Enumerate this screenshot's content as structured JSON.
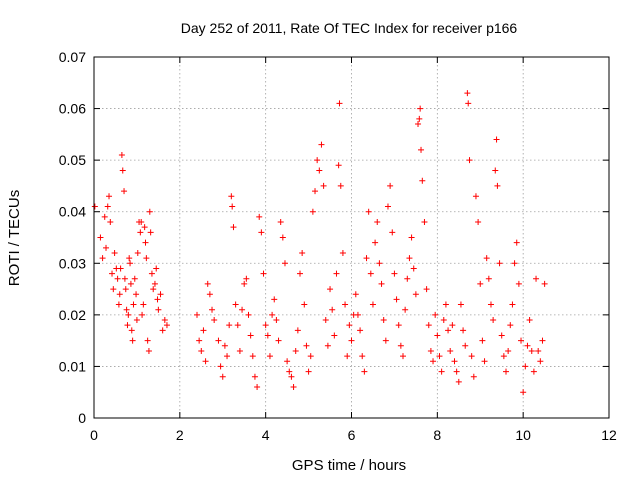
{
  "chart_data": {
    "type": "scatter",
    "title": "Day 252 of 2011, Rate Of TEC Index for receiver p166",
    "xlabel": "GPS time / hours",
    "ylabel": "ROTI / TECUs",
    "xlim": [
      0,
      12
    ],
    "ylim": [
      0,
      0.07
    ],
    "xticks": [
      0,
      2,
      4,
      6,
      8,
      10,
      12
    ],
    "xtick_labels": [
      "0",
      "2",
      "4",
      "6",
      "8",
      "10",
      "12"
    ],
    "yticks": [
      0,
      0.01,
      0.02,
      0.03,
      0.04,
      0.05,
      0.06,
      0.07
    ],
    "ytick_labels": [
      "0",
      "0.01",
      "0.02",
      "0.03",
      "0.04",
      "0.05",
      "0.06",
      "0.07"
    ],
    "grid": true,
    "marker": "+",
    "color": "#ff0000",
    "series": [
      {
        "name": "ROTI",
        "points": [
          [
            0.02,
            0.041
          ],
          [
            0.15,
            0.035
          ],
          [
            0.2,
            0.031
          ],
          [
            0.25,
            0.039
          ],
          [
            0.28,
            0.033
          ],
          [
            0.32,
            0.041
          ],
          [
            0.35,
            0.043
          ],
          [
            0.38,
            0.038
          ],
          [
            0.42,
            0.028
          ],
          [
            0.45,
            0.025
          ],
          [
            0.48,
            0.032
          ],
          [
            0.52,
            0.029
          ],
          [
            0.55,
            0.027
          ],
          [
            0.58,
            0.022
          ],
          [
            0.6,
            0.024
          ],
          [
            0.62,
            0.029
          ],
          [
            0.65,
            0.051
          ],
          [
            0.67,
            0.048
          ],
          [
            0.7,
            0.044
          ],
          [
            0.72,
            0.027
          ],
          [
            0.74,
            0.025
          ],
          [
            0.76,
            0.021
          ],
          [
            0.78,
            0.018
          ],
          [
            0.8,
            0.02
          ],
          [
            0.82,
            0.031
          ],
          [
            0.84,
            0.03
          ],
          [
            0.86,
            0.026
          ],
          [
            0.88,
            0.017
          ],
          [
            0.9,
            0.015
          ],
          [
            0.92,
            0.022
          ],
          [
            0.95,
            0.027
          ],
          [
            0.98,
            0.024
          ],
          [
            1.0,
            0.019
          ],
          [
            1.02,
            0.032
          ],
          [
            1.05,
            0.038
          ],
          [
            1.08,
            0.036
          ],
          [
            1.1,
            0.038
          ],
          [
            1.12,
            0.02
          ],
          [
            1.15,
            0.022
          ],
          [
            1.18,
            0.037
          ],
          [
            1.2,
            0.034
          ],
          [
            1.22,
            0.031
          ],
          [
            1.25,
            0.015
          ],
          [
            1.28,
            0.013
          ],
          [
            1.3,
            0.04
          ],
          [
            1.32,
            0.036
          ],
          [
            1.35,
            0.028
          ],
          [
            1.38,
            0.025
          ],
          [
            1.42,
            0.026
          ],
          [
            1.45,
            0.029
          ],
          [
            1.48,
            0.023
          ],
          [
            1.5,
            0.021
          ],
          [
            1.55,
            0.024
          ],
          [
            1.6,
            0.017
          ],
          [
            1.65,
            0.019
          ],
          [
            1.7,
            0.018
          ],
          [
            2.4,
            0.02
          ],
          [
            2.45,
            0.015
          ],
          [
            2.5,
            0.013
          ],
          [
            2.55,
            0.017
          ],
          [
            2.6,
            0.011
          ],
          [
            2.65,
            0.026
          ],
          [
            2.7,
            0.024
          ],
          [
            2.75,
            0.021
          ],
          [
            2.8,
            0.019
          ],
          [
            2.9,
            0.015
          ],
          [
            2.95,
            0.01
          ],
          [
            3.0,
            0.008
          ],
          [
            3.05,
            0.014
          ],
          [
            3.1,
            0.012
          ],
          [
            3.15,
            0.018
          ],
          [
            3.2,
            0.043
          ],
          [
            3.22,
            0.041
          ],
          [
            3.25,
            0.037
          ],
          [
            3.3,
            0.022
          ],
          [
            3.35,
            0.018
          ],
          [
            3.4,
            0.013
          ],
          [
            3.45,
            0.021
          ],
          [
            3.5,
            0.026
          ],
          [
            3.55,
            0.027
          ],
          [
            3.6,
            0.02
          ],
          [
            3.65,
            0.016
          ],
          [
            3.7,
            0.012
          ],
          [
            3.75,
            0.008
          ],
          [
            3.8,
            0.006
          ],
          [
            3.85,
            0.039
          ],
          [
            3.9,
            0.036
          ],
          [
            3.95,
            0.028
          ],
          [
            4.0,
            0.018
          ],
          [
            4.05,
            0.016
          ],
          [
            4.1,
            0.012
          ],
          [
            4.15,
            0.02
          ],
          [
            4.2,
            0.023
          ],
          [
            4.25,
            0.019
          ],
          [
            4.3,
            0.015
          ],
          [
            4.35,
            0.038
          ],
          [
            4.4,
            0.035
          ],
          [
            4.45,
            0.03
          ],
          [
            4.5,
            0.011
          ],
          [
            4.55,
            0.009
          ],
          [
            4.6,
            0.008
          ],
          [
            4.65,
            0.006
          ],
          [
            4.7,
            0.013
          ],
          [
            4.75,
            0.017
          ],
          [
            4.8,
            0.028
          ],
          [
            4.85,
            0.032
          ],
          [
            4.9,
            0.022
          ],
          [
            4.95,
            0.014
          ],
          [
            5.0,
            0.009
          ],
          [
            5.05,
            0.012
          ],
          [
            5.1,
            0.04
          ],
          [
            5.15,
            0.044
          ],
          [
            5.2,
            0.05
          ],
          [
            5.25,
            0.048
          ],
          [
            5.3,
            0.053
          ],
          [
            5.35,
            0.045
          ],
          [
            5.4,
            0.019
          ],
          [
            5.45,
            0.014
          ],
          [
            5.5,
            0.025
          ],
          [
            5.55,
            0.021
          ],
          [
            5.6,
            0.016
          ],
          [
            5.65,
            0.028
          ],
          [
            5.7,
            0.049
          ],
          [
            5.72,
            0.061
          ],
          [
            5.75,
            0.045
          ],
          [
            5.8,
            0.032
          ],
          [
            5.85,
            0.022
          ],
          [
            5.9,
            0.012
          ],
          [
            5.95,
            0.018
          ],
          [
            6.0,
            0.015
          ],
          [
            6.05,
            0.02
          ],
          [
            6.1,
            0.024
          ],
          [
            6.15,
            0.02
          ],
          [
            6.2,
            0.017
          ],
          [
            6.25,
            0.012
          ],
          [
            6.3,
            0.009
          ],
          [
            6.35,
            0.031
          ],
          [
            6.4,
            0.04
          ],
          [
            6.45,
            0.028
          ],
          [
            6.5,
            0.022
          ],
          [
            6.55,
            0.034
          ],
          [
            6.6,
            0.038
          ],
          [
            6.65,
            0.03
          ],
          [
            6.7,
            0.026
          ],
          [
            6.75,
            0.019
          ],
          [
            6.8,
            0.015
          ],
          [
            6.85,
            0.041
          ],
          [
            6.9,
            0.045
          ],
          [
            6.95,
            0.036
          ],
          [
            7.0,
            0.028
          ],
          [
            7.05,
            0.023
          ],
          [
            7.1,
            0.018
          ],
          [
            7.15,
            0.014
          ],
          [
            7.2,
            0.012
          ],
          [
            7.25,
            0.021
          ],
          [
            7.3,
            0.027
          ],
          [
            7.35,
            0.031
          ],
          [
            7.4,
            0.035
          ],
          [
            7.45,
            0.029
          ],
          [
            7.5,
            0.024
          ],
          [
            7.55,
            0.057
          ],
          [
            7.58,
            0.058
          ],
          [
            7.6,
            0.06
          ],
          [
            7.62,
            0.052
          ],
          [
            7.65,
            0.046
          ],
          [
            7.7,
            0.038
          ],
          [
            7.75,
            0.025
          ],
          [
            7.8,
            0.018
          ],
          [
            7.85,
            0.013
          ],
          [
            7.9,
            0.011
          ],
          [
            7.95,
            0.02
          ],
          [
            8.0,
            0.016
          ],
          [
            8.05,
            0.012
          ],
          [
            8.1,
            0.009
          ],
          [
            8.15,
            0.019
          ],
          [
            8.2,
            0.022
          ],
          [
            8.25,
            0.017
          ],
          [
            8.3,
            0.013
          ],
          [
            8.35,
            0.018
          ],
          [
            8.4,
            0.011
          ],
          [
            8.45,
            0.009
          ],
          [
            8.5,
            0.007
          ],
          [
            8.55,
            0.022
          ],
          [
            8.6,
            0.017
          ],
          [
            8.65,
            0.014
          ],
          [
            8.7,
            0.063
          ],
          [
            8.72,
            0.061
          ],
          [
            8.75,
            0.05
          ],
          [
            8.8,
            0.012
          ],
          [
            8.85,
            0.008
          ],
          [
            8.9,
            0.043
          ],
          [
            8.95,
            0.038
          ],
          [
            9.0,
            0.026
          ],
          [
            9.05,
            0.015
          ],
          [
            9.1,
            0.011
          ],
          [
            9.15,
            0.031
          ],
          [
            9.2,
            0.027
          ],
          [
            9.25,
            0.022
          ],
          [
            9.3,
            0.019
          ],
          [
            9.35,
            0.048
          ],
          [
            9.38,
            0.054
          ],
          [
            9.4,
            0.045
          ],
          [
            9.45,
            0.03
          ],
          [
            9.5,
            0.016
          ],
          [
            9.55,
            0.012
          ],
          [
            9.6,
            0.009
          ],
          [
            9.65,
            0.013
          ],
          [
            9.7,
            0.018
          ],
          [
            9.75,
            0.022
          ],
          [
            9.8,
            0.03
          ],
          [
            9.85,
            0.034
          ],
          [
            9.9,
            0.026
          ],
          [
            9.95,
            0.015
          ],
          [
            10.0,
            0.005
          ],
          [
            10.05,
            0.01
          ],
          [
            10.1,
            0.014
          ],
          [
            10.15,
            0.019
          ],
          [
            10.2,
            0.013
          ],
          [
            10.25,
            0.009
          ],
          [
            10.3,
            0.027
          ],
          [
            10.35,
            0.013
          ],
          [
            10.4,
            0.011
          ],
          [
            10.45,
            0.015
          ],
          [
            10.5,
            0.026
          ]
        ]
      }
    ]
  }
}
